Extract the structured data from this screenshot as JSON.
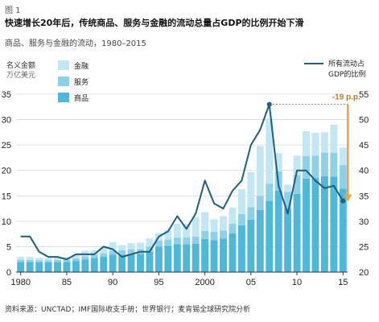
{
  "figure_label": "图 1",
  "title": "快速增长20年后，传统商品、服务与金融的流动总量占GDP的比例开始下滑",
  "subtitle": "商品、服务与金融的流动，1980–2015",
  "source": "资料来源：UNCTAD；IMF国际收支手册；世界银行；麦肯锡全球研究院分析",
  "colors": {
    "finance": "#c3e6f3",
    "services": "#8fd0e9",
    "goods": "#4fb8d8",
    "line": "#1d5f7e",
    "annotation": "#e8a33d"
  },
  "chart_data": {
    "type": "bar",
    "x": [
      1980,
      1981,
      1982,
      1983,
      1984,
      1985,
      1986,
      1987,
      1988,
      1989,
      1990,
      1991,
      1992,
      1993,
      1994,
      1995,
      1996,
      1997,
      1998,
      1999,
      2000,
      2001,
      2002,
      2003,
      2004,
      2005,
      2006,
      2007,
      2008,
      2009,
      2010,
      2011,
      2012,
      2013,
      2014,
      2015
    ],
    "series": [
      {
        "name": "商品",
        "values": [
          2.0,
          2.0,
          1.9,
          1.9,
          2.0,
          2.0,
          2.2,
          2.5,
          2.8,
          3.0,
          3.4,
          3.4,
          3.6,
          3.6,
          4.0,
          5.0,
          5.2,
          5.5,
          5.5,
          5.6,
          6.5,
          6.3,
          6.6,
          7.6,
          9.2,
          10.3,
          12.2,
          14.0,
          16.0,
          12.5,
          15.4,
          18.4,
          18.5,
          18.9,
          18.8,
          16.4
        ]
      },
      {
        "name": "服务",
        "values": [
          0.4,
          0.4,
          0.4,
          0.4,
          0.4,
          0.4,
          0.5,
          0.6,
          0.6,
          0.7,
          0.8,
          0.9,
          0.9,
          0.9,
          1.0,
          1.2,
          1.2,
          1.3,
          1.3,
          1.4,
          1.6,
          1.6,
          1.6,
          1.9,
          2.2,
          2.5,
          2.8,
          3.4,
          3.8,
          3.3,
          3.7,
          4.4,
          4.4,
          4.6,
          4.7,
          4.7
        ]
      },
      {
        "name": "金融",
        "values": [
          0.6,
          0.6,
          0.5,
          0.5,
          0.5,
          0.6,
          0.8,
          1.1,
          0.9,
          1.2,
          1.7,
          1.0,
          1.2,
          1.3,
          1.6,
          1.5,
          1.9,
          2.7,
          2.7,
          3.8,
          3.7,
          2.5,
          2.8,
          3.2,
          4.9,
          6.9,
          9.8,
          12.8,
          3.6,
          1.4,
          3.8,
          4.9,
          4.5,
          4.0,
          5.5,
          3.4
        ]
      },
      {
        "name": "所有流动占GDP的比例",
        "axis": "right",
        "values": [
          27,
          27,
          24,
          23,
          23,
          22.5,
          23.5,
          23.5,
          23.5,
          25,
          24.5,
          23,
          23.5,
          24,
          24,
          27,
          28,
          31,
          28.5,
          31.5,
          38,
          33.5,
          32.5,
          36,
          38,
          45,
          48,
          53,
          37,
          31.5,
          40,
          40,
          38,
          36.5,
          37,
          34
        ]
      }
    ],
    "xlim": [
      1980,
      2015
    ],
    "xticks": [
      "1980",
      "85",
      "90",
      "95",
      "2000",
      "05",
      "10",
      "15"
    ],
    "xtick_values": [
      1980,
      1985,
      1990,
      1995,
      2000,
      2005,
      2010,
      2015
    ],
    "ylabel": "名义金额",
    "ylabel_unit": "万亿美元",
    "ylim": [
      0,
      35
    ],
    "yticks": [
      0,
      5,
      10,
      15,
      20,
      25,
      30,
      35
    ],
    "y2label": "所有流动占 GDP的比例",
    "y2lim": [
      20,
      55
    ],
    "y2ticks": [
      20,
      25,
      30,
      35,
      40,
      45,
      50,
      55
    ],
    "legend": [
      "金融",
      "服务",
      "商品"
    ],
    "legend_position": "top-left",
    "annotation": "-19 p.p.",
    "grid": true
  }
}
